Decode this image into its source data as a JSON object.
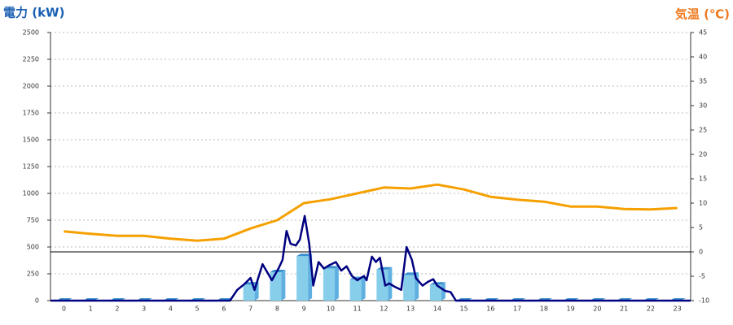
{
  "chart_data": {
    "type": "combo",
    "title_left": "電力 (kW)",
    "title_right": "気温 (℃)",
    "categories": [
      "0",
      "1",
      "2",
      "3",
      "4",
      "5",
      "6",
      "7",
      "8",
      "9",
      "10",
      "11",
      "12",
      "13",
      "14",
      "15",
      "16",
      "17",
      "18",
      "19",
      "20",
      "21",
      "22",
      "23"
    ],
    "xlim": [
      -0.5,
      23.5
    ],
    "ylim": [
      0,
      2500
    ],
    "yticks": [
      0,
      250,
      500,
      750,
      1000,
      1250,
      1500,
      1750,
      2000,
      2250,
      2500
    ],
    "y2lim": [
      -10,
      45
    ],
    "y2ticks": [
      -10,
      -5,
      0,
      5,
      10,
      15,
      20,
      25,
      30,
      35,
      40,
      45
    ],
    "y2_reference": 0,
    "grid": true,
    "series": [
      {
        "type": "bar",
        "color": "#87ceeb",
        "values": [
          0,
          0,
          0,
          0,
          0,
          0,
          0,
          150,
          265,
          415,
          300,
          200,
          290,
          240,
          150,
          0,
          0,
          0,
          0,
          0,
          0,
          0,
          0,
          0
        ]
      },
      {
        "type": "line",
        "color": "#000080",
        "x": [
          -0.5,
          6.23,
          6.5,
          6.75,
          7,
          7.15,
          7.45,
          7.8,
          8.05,
          8.2,
          8.35,
          8.5,
          8.7,
          8.85,
          9.03,
          9.2,
          9.35,
          9.55,
          9.75,
          9.95,
          10.2,
          10.4,
          10.6,
          10.8,
          11,
          11.25,
          11.35,
          11.55,
          11.7,
          11.85,
          12.05,
          12.2,
          12.4,
          12.65,
          12.85,
          13.05,
          13.2,
          13.45,
          13.65,
          13.85,
          14,
          14.3,
          14.5,
          14.7,
          23.5
        ],
        "values": [
          0,
          0,
          100,
          150,
          212,
          100,
          340,
          190,
          300,
          380,
          650,
          530,
          515,
          570,
          790,
          530,
          140,
          360,
          300,
          330,
          360,
          280,
          320,
          230,
          190,
          230,
          190,
          410,
          360,
          400,
          140,
          160,
          130,
          100,
          500,
          380,
          210,
          140,
          175,
          200,
          140,
          90,
          80,
          0,
          0
        ]
      },
      {
        "type": "line",
        "axis": "y2",
        "color": "#f5a000",
        "values": [
          4.2,
          3.7,
          3.3,
          3.3,
          2.7,
          2.3,
          2.7,
          4.8,
          6.5,
          10,
          10.8,
          12,
          13.2,
          13,
          13.8,
          12.8,
          11.3,
          10.7,
          10.3,
          9.3,
          9.3,
          8.8,
          8.7,
          9
        ]
      }
    ]
  }
}
